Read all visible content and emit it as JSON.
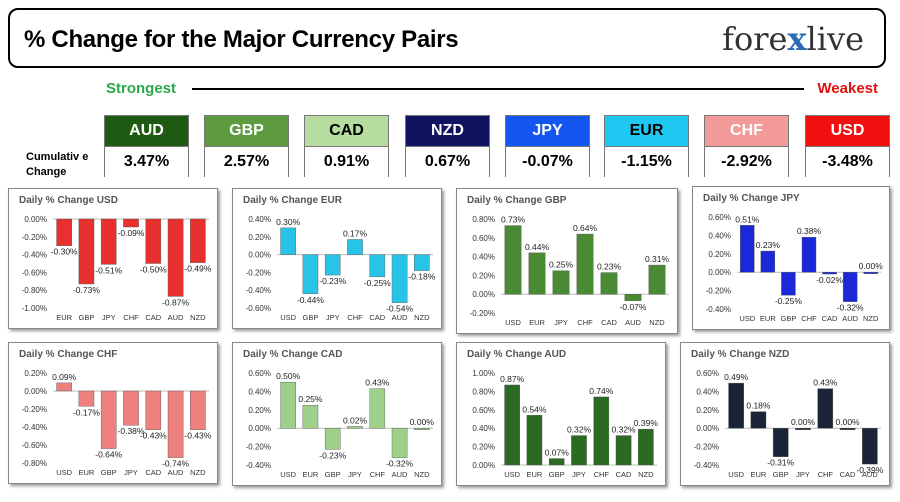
{
  "header": {
    "title": "% Change for the Major Currency Pairs",
    "logo_text_left": "fore",
    "logo_text_x": "x",
    "logo_text_right": "live"
  },
  "scale": {
    "strongest_label": "Strongest",
    "weakest_label": "Weakest"
  },
  "cumulative_label": "Cumulativ e Change",
  "currencies": [
    {
      "code": "AUD",
      "value": "3.47%",
      "bg": "#1f5a12",
      "fg": "#ffffff"
    },
    {
      "code": "GBP",
      "value": "2.57%",
      "bg": "#5e9a3e",
      "fg": "#ffffff"
    },
    {
      "code": "CAD",
      "value": "0.91%",
      "bg": "#b6dca0",
      "fg": "#000000"
    },
    {
      "code": "NZD",
      "value": "0.67%",
      "bg": "#10145e",
      "fg": "#ffffff"
    },
    {
      "code": "JPY",
      "value": "-0.07%",
      "bg": "#1456f0",
      "fg": "#ffffff"
    },
    {
      "code": "EUR",
      "value": "-1.15%",
      "bg": "#1ec8f0",
      "fg": "#000000"
    },
    {
      "code": "CHF",
      "value": "-2.92%",
      "bg": "#f29a9a",
      "fg": "#ffffff"
    },
    {
      "code": "USD",
      "value": "-3.48%",
      "bg": "#f01010",
      "fg": "#ffffff"
    }
  ],
  "chart_data": [
    {
      "type": "bar",
      "title": "Daily % Change USD",
      "categories": [
        "EUR",
        "GBP",
        "JPY",
        "CHF",
        "CAD",
        "AUD",
        "NZD"
      ],
      "values": [
        -0.3,
        -0.73,
        -0.51,
        -0.09,
        -0.5,
        -0.87,
        -0.49
      ],
      "labels": [
        "-0.30%",
        "-0.73%",
        "-0.51%",
        "-0.09%",
        "-0.50%",
        "-0.87%",
        "-0.49%"
      ],
      "yticks": [
        "0.00%",
        "-0.20%",
        "-0.40%",
        "-0.60%",
        "-0.80%",
        "-1.00%"
      ],
      "ylim": [
        -1.0,
        0.0
      ],
      "color": "#e8302f"
    },
    {
      "type": "bar",
      "title": "Daily % Change EUR",
      "categories": [
        "USD",
        "GBP",
        "JPY",
        "CHF",
        "CAD",
        "AUD",
        "NZD"
      ],
      "values": [
        0.3,
        -0.44,
        -0.23,
        0.17,
        -0.25,
        -0.54,
        -0.18
      ],
      "labels": [
        "0.30%",
        "-0.44%",
        "-0.23%",
        "0.17%",
        "-0.25%",
        "-0.54%",
        "-0.18%"
      ],
      "yticks": [
        "0.40%",
        "0.20%",
        "0.00%",
        "-0.20%",
        "-0.40%",
        "-0.60%"
      ],
      "ylim": [
        -0.6,
        0.4
      ],
      "color": "#28c4e8"
    },
    {
      "type": "bar",
      "title": "Daily % Change GBP",
      "categories": [
        "USD",
        "EUR",
        "JPY",
        "CHF",
        "CAD",
        "AUD",
        "NZD"
      ],
      "values": [
        0.73,
        0.44,
        0.25,
        0.64,
        0.23,
        -0.07,
        0.31
      ],
      "labels": [
        "0.73%",
        "0.44%",
        "0.25%",
        "0.64%",
        "0.23%",
        "-0.07%",
        "0.31%"
      ],
      "yticks": [
        "0.80%",
        "0.60%",
        "0.40%",
        "0.20%",
        "0.00%",
        "-0.20%"
      ],
      "ylim": [
        -0.2,
        0.8
      ],
      "color": "#4a8a32"
    },
    {
      "type": "bar",
      "title": "Daily % Change JPY",
      "categories": [
        "USD",
        "EUR",
        "GBP",
        "CHF",
        "CAD",
        "AUD",
        "NZD"
      ],
      "values": [
        0.51,
        0.23,
        -0.25,
        0.38,
        -0.02,
        -0.32,
        0.0
      ],
      "labels": [
        "0.51%",
        "0.23%",
        "-0.25%",
        "0.38%",
        "-0.02%",
        "-0.32%",
        "0.00%"
      ],
      "yticks": [
        "0.60%",
        "0.40%",
        "0.20%",
        "0.00%",
        "-0.20%",
        "-0.40%"
      ],
      "ylim": [
        -0.4,
        0.6
      ],
      "color": "#1a28d8"
    },
    {
      "type": "bar",
      "title": "Daily % Change CHF",
      "categories": [
        "USD",
        "EUR",
        "GBP",
        "JPY",
        "CAD",
        "AUD",
        "NZD"
      ],
      "values": [
        0.09,
        -0.17,
        -0.64,
        -0.38,
        -0.43,
        -0.74,
        -0.43
      ],
      "labels": [
        "0.09%",
        "-0.17%",
        "-0.64%",
        "-0.38%",
        "-0.43%",
        "-0.74%",
        "-0.43%"
      ],
      "yticks": [
        "0.20%",
        "0.00%",
        "-0.20%",
        "-0.40%",
        "-0.60%",
        "-0.80%"
      ],
      "ylim": [
        -0.8,
        0.2
      ],
      "color": "#ee8080"
    },
    {
      "type": "bar",
      "title": "Daily % Change CAD",
      "categories": [
        "USD",
        "EUR",
        "GBP",
        "JPY",
        "CHF",
        "AUD",
        "NZD"
      ],
      "values": [
        0.5,
        0.25,
        -0.23,
        0.02,
        0.43,
        -0.32,
        0.0
      ],
      "labels": [
        "0.50%",
        "0.25%",
        "-0.23%",
        "0.02%",
        "0.43%",
        "-0.32%",
        "0.00%"
      ],
      "yticks": [
        "0.60%",
        "0.40%",
        "0.20%",
        "0.00%",
        "-0.20%",
        "-0.40%"
      ],
      "ylim": [
        -0.4,
        0.6
      ],
      "color": "#9ed08a"
    },
    {
      "type": "bar",
      "title": "Daily % Change AUD",
      "categories": [
        "USD",
        "EUR",
        "GBP",
        "JPY",
        "CHF",
        "CAD",
        "NZD"
      ],
      "values": [
        0.87,
        0.54,
        0.07,
        0.32,
        0.74,
        0.32,
        0.39
      ],
      "labels": [
        "0.87%",
        "0.54%",
        "0.07%",
        "0.32%",
        "0.74%",
        "0.32%",
        "0.39%"
      ],
      "yticks": [
        "1.00%",
        "0.80%",
        "0.60%",
        "0.40%",
        "0.20%",
        "0.00%"
      ],
      "ylim": [
        0.0,
        1.0
      ],
      "color": "#2a6a22"
    },
    {
      "type": "bar",
      "title": "Daily % Change NZD",
      "categories": [
        "USD",
        "EUR",
        "GBP",
        "JPY",
        "CHF",
        "CAD",
        "AUD"
      ],
      "values": [
        0.49,
        0.18,
        -0.31,
        0.0,
        0.43,
        0.0,
        -0.39
      ],
      "labels": [
        "0.49%",
        "0.18%",
        "-0.31%",
        "0.00%",
        "0.43%",
        "0.00%",
        "-0.39%"
      ],
      "yticks": [
        "0.60%",
        "0.40%",
        "0.20%",
        "0.00%",
        "-0.20%",
        "-0.40%"
      ],
      "ylim": [
        -0.4,
        0.6
      ],
      "color": "#1a2438"
    }
  ]
}
